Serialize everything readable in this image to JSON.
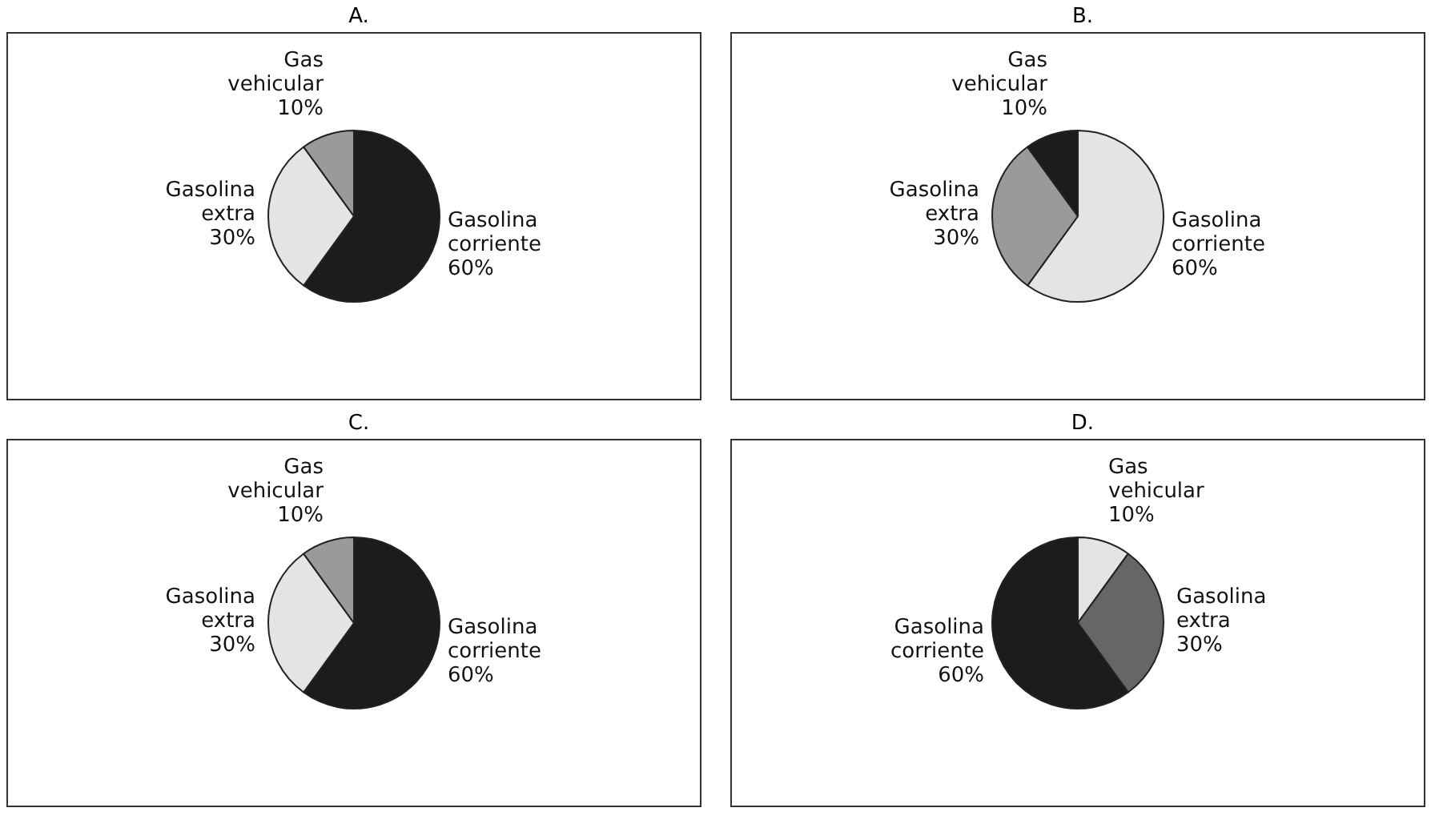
{
  "chart_data": [
    {
      "type": "pie",
      "title": "A.",
      "categories": [
        "Gasolina corriente",
        "Gasolina extra",
        "Gas vehicular"
      ],
      "values": [
        60,
        30,
        10
      ],
      "value_labels": [
        "60%",
        "30%",
        "10%"
      ],
      "colors": [
        "#1c1c1c",
        "#e4e4e4",
        "#9a9a9a"
      ]
    },
    {
      "type": "pie",
      "title": "B.",
      "categories": [
        "Gasolina corriente",
        "Gasolina extra",
        "Gas vehicular"
      ],
      "values": [
        60,
        30,
        10
      ],
      "value_labels": [
        "60%",
        "30%",
        "10%"
      ],
      "colors": [
        "#e4e4e4",
        "#9a9a9a",
        "#1c1c1c"
      ]
    },
    {
      "type": "pie",
      "title": "C.",
      "categories": [
        "Gasolina corriente",
        "Gasolina extra",
        "Gas vehicular"
      ],
      "values": [
        60,
        30,
        10
      ],
      "value_labels": [
        "60%",
        "30%",
        "10%"
      ],
      "colors": [
        "#1c1c1c",
        "#e4e4e4",
        "#9a9a9a"
      ]
    },
    {
      "type": "pie",
      "title": "D.",
      "categories": [
        "Gas vehicular",
        "Gasolina extra",
        "Gasolina corriente"
      ],
      "values": [
        10,
        30,
        60
      ],
      "value_labels": [
        "10%",
        "30%",
        "60%"
      ],
      "colors": [
        "#e4e4e4",
        "#666666",
        "#1c1c1c"
      ]
    }
  ]
}
